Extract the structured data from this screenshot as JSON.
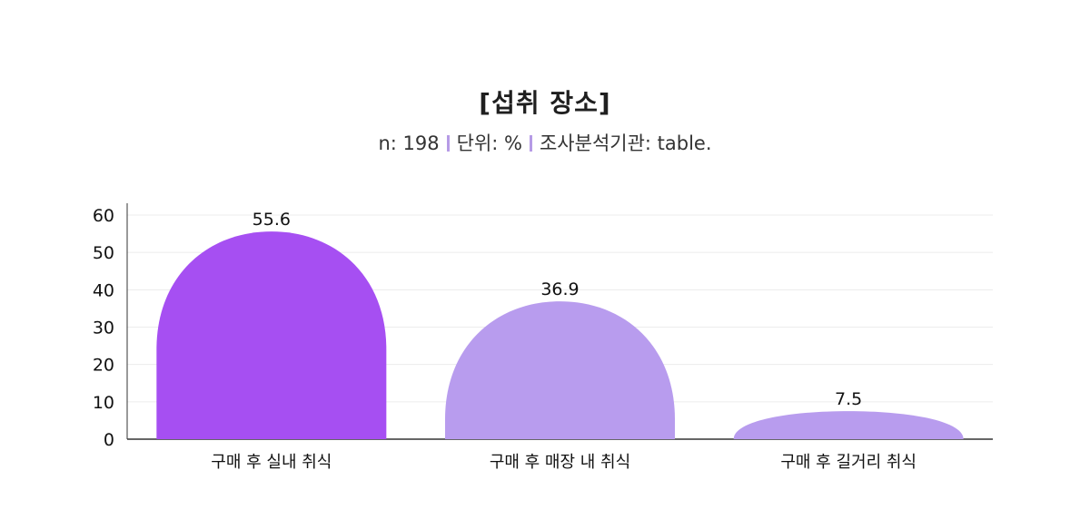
{
  "chart_data": {
    "type": "bar",
    "title": "[섭취 장소]",
    "subtitle": {
      "sample": "n: 198",
      "unit": "단위: %",
      "source": "조사분석기관: table."
    },
    "categories": [
      "구매 후 실내 취식",
      "구매 후 매장 내 취식",
      "구매 후 길거리 취식"
    ],
    "values": [
      55.6,
      36.9,
      7.5
    ],
    "data_labels": [
      "55.6",
      "36.9",
      "7.5"
    ],
    "yticks": [
      "0",
      "10",
      "20",
      "30",
      "40",
      "50",
      "60"
    ],
    "ylim": [
      0,
      60
    ],
    "grid": true,
    "colors": [
      "#a64ff2",
      "#b89cee",
      "#b89cee"
    ],
    "separator_color": "#b69be6"
  }
}
